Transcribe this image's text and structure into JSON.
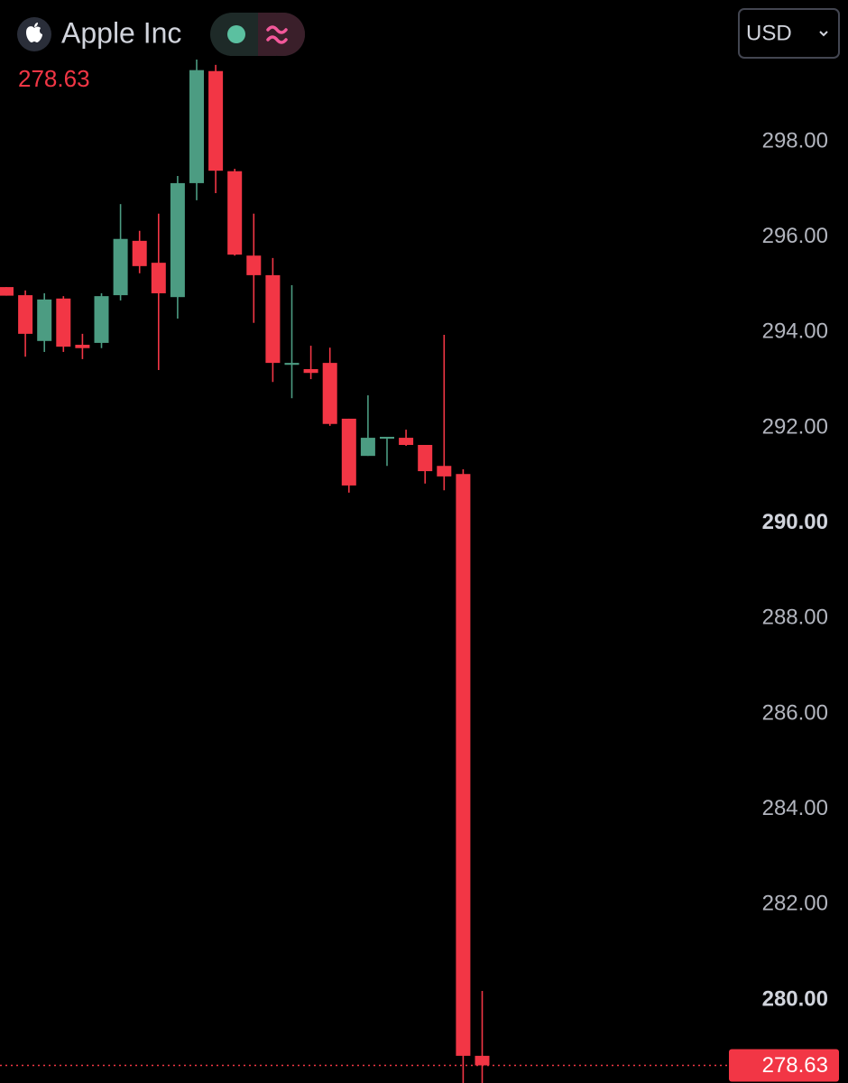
{
  "chart_data": {
    "type": "candlestick",
    "title": "Apple Inc",
    "currency": "USD",
    "last_price": {
      "value": 278.63,
      "label": "278.63"
    },
    "up_color": "#4c9c82",
    "down_color": "#f23645",
    "ylim": [
      278.26,
      300.97
    ],
    "yticks": [
      {
        "value": 280,
        "label": "280.00"
      },
      {
        "value": 282,
        "label": "282.00"
      },
      {
        "value": 284,
        "label": "284.00"
      },
      {
        "value": 286,
        "label": "286.00"
      },
      {
        "value": 288,
        "label": "288.00"
      },
      {
        "value": 290,
        "label": "290.00"
      },
      {
        "value": 292,
        "label": "292.00"
      },
      {
        "value": 294,
        "label": "294.00"
      },
      {
        "value": 296,
        "label": "296.00"
      },
      {
        "value": 298,
        "label": "298.00"
      }
    ],
    "open": [
      294.95,
      294.78,
      293.82,
      294.71,
      293.74,
      293.78,
      294.78,
      295.92,
      295.46,
      294.74,
      297.13,
      299.48,
      297.38,
      295.61,
      295.2,
      293.32,
      293.23,
      293.36,
      292.19,
      291.41,
      291.77,
      291.79,
      291.64,
      291.2,
      291.03,
      278.83
    ],
    "high": [
      294.95,
      294.88,
      294.82,
      294.76,
      293.97,
      294.82,
      296.69,
      296.13,
      296.49,
      297.28,
      299.72,
      299.61,
      297.43,
      296.49,
      295.56,
      294.99,
      293.72,
      293.68,
      292.19,
      292.68,
      291.81,
      291.96,
      291.64,
      293.95,
      291.13,
      280.19
    ],
    "low": [
      294.77,
      293.49,
      293.59,
      293.59,
      293.44,
      293.67,
      294.67,
      295.24,
      293.21,
      294.29,
      296.77,
      296.92,
      295.61,
      294.2,
      292.96,
      292.62,
      293.02,
      292.04,
      290.64,
      291.41,
      291.2,
      291.62,
      290.83,
      290.69,
      278.26,
      278.26
    ],
    "close": [
      294.77,
      293.97,
      294.69,
      293.7,
      293.67,
      294.76,
      295.96,
      295.39,
      294.82,
      297.13,
      299.5,
      297.39,
      295.63,
      295.2,
      293.36,
      293.36,
      293.15,
      292.08,
      290.79,
      291.79,
      291.81,
      291.64,
      291.09,
      290.98,
      278.83,
      278.63
    ]
  }
}
